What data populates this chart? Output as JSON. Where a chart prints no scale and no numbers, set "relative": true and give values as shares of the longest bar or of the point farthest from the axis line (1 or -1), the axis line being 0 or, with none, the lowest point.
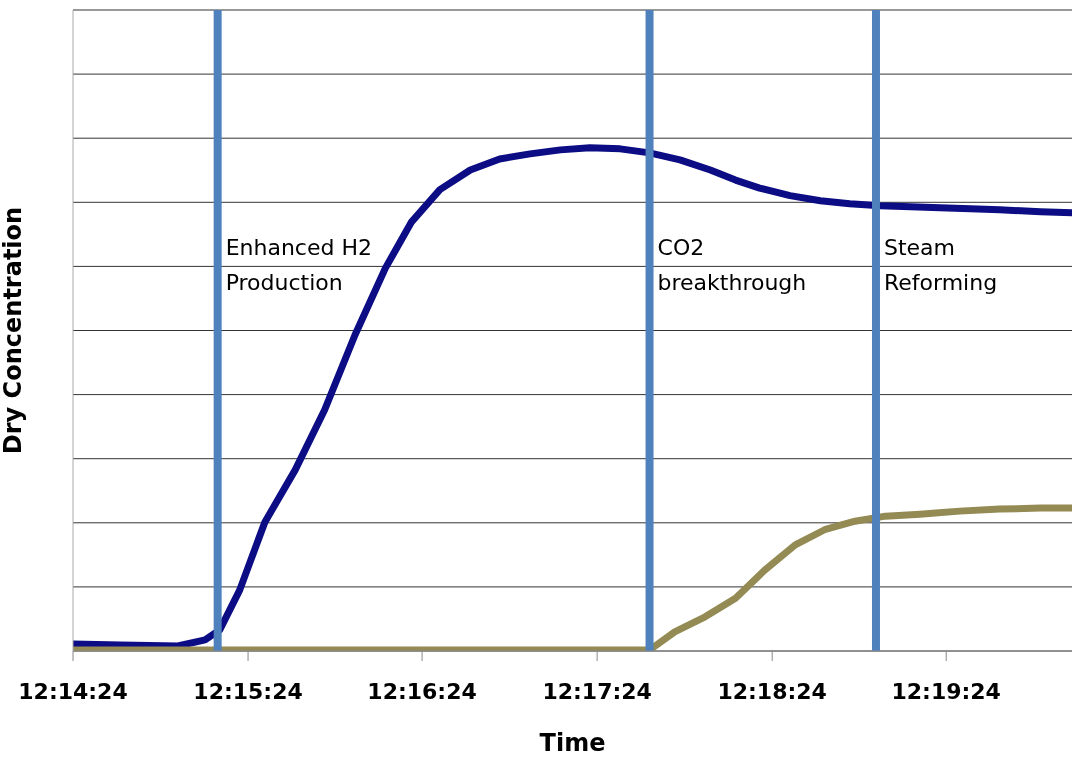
{
  "chart_data": {
    "type": "line",
    "xlabel": "Time",
    "ylabel": "Dry Concentration",
    "relative": true,
    "grid": "y",
    "marker": "none",
    "line_style": "solid",
    "xlim": [
      12.24,
      12.3353
    ],
    "xticks": [
      {
        "value": 12.24,
        "label": "12:14:24"
      },
      {
        "value": 12.2567,
        "label": "12:15:24"
      },
      {
        "value": 12.2733,
        "label": "12:16:24"
      },
      {
        "value": 12.29,
        "label": "12:17:24"
      },
      {
        "value": 12.3067,
        "label": "12:18:24"
      },
      {
        "value": 12.3233,
        "label": "12:19:24"
      }
    ],
    "series": [
      {
        "color": "#0c0c84",
        "x": [
          12.24,
          12.2445,
          12.25,
          12.2526,
          12.254,
          12.2559,
          12.2583,
          12.2612,
          12.264,
          12.2669,
          12.2698,
          12.2723,
          12.275,
          12.2779,
          12.2807,
          12.2836,
          12.2865,
          12.2893,
          12.2922,
          12.295,
          12.2979,
          12.3008,
          12.3032,
          12.3055,
          12.3084,
          12.3113,
          12.3141,
          12.317,
          12.3199,
          12.3227,
          12.3256,
          12.3284,
          12.3323,
          12.3353
        ],
        "values": [
          0.014,
          0.012,
          0.01,
          0.022,
          0.042,
          0.121,
          0.256,
          0.36,
          0.479,
          0.628,
          0.761,
          0.853,
          0.917,
          0.956,
          0.978,
          0.988,
          0.996,
          1,
          0.998,
          0.99,
          0.976,
          0.956,
          0.936,
          0.92,
          0.905,
          0.895,
          0.889,
          0.885,
          0.883,
          0.881,
          0.879,
          0.877,
          0.873,
          0.871
        ]
      },
      {
        "color": "#948a54",
        "x": [
          12.24,
          12.295,
          12.2974,
          12.3003,
          12.3032,
          12.306,
          12.3089,
          12.3117,
          12.3146,
          12.3175,
          12.3208,
          12.3246,
          12.3284,
          12.3323,
          12.3353
        ],
        "values": [
          0.002,
          0.002,
          0.038,
          0.068,
          0.105,
          0.161,
          0.211,
          0.241,
          0.258,
          0.268,
          0.272,
          0.278,
          0.282,
          0.284,
          0.284
        ]
      }
    ],
    "ref_lines": [
      {
        "axis": "x",
        "value": 12.2538,
        "label": "Enhanced H2 Production",
        "color": "#4f81bd"
      },
      {
        "axis": "x",
        "value": 12.295,
        "label": "CO2 breakthrough",
        "color": "#4f81bd"
      },
      {
        "axis": "x",
        "value": 12.3166,
        "label": "Steam Reforming",
        "color": "#4f81bd"
      }
    ]
  }
}
